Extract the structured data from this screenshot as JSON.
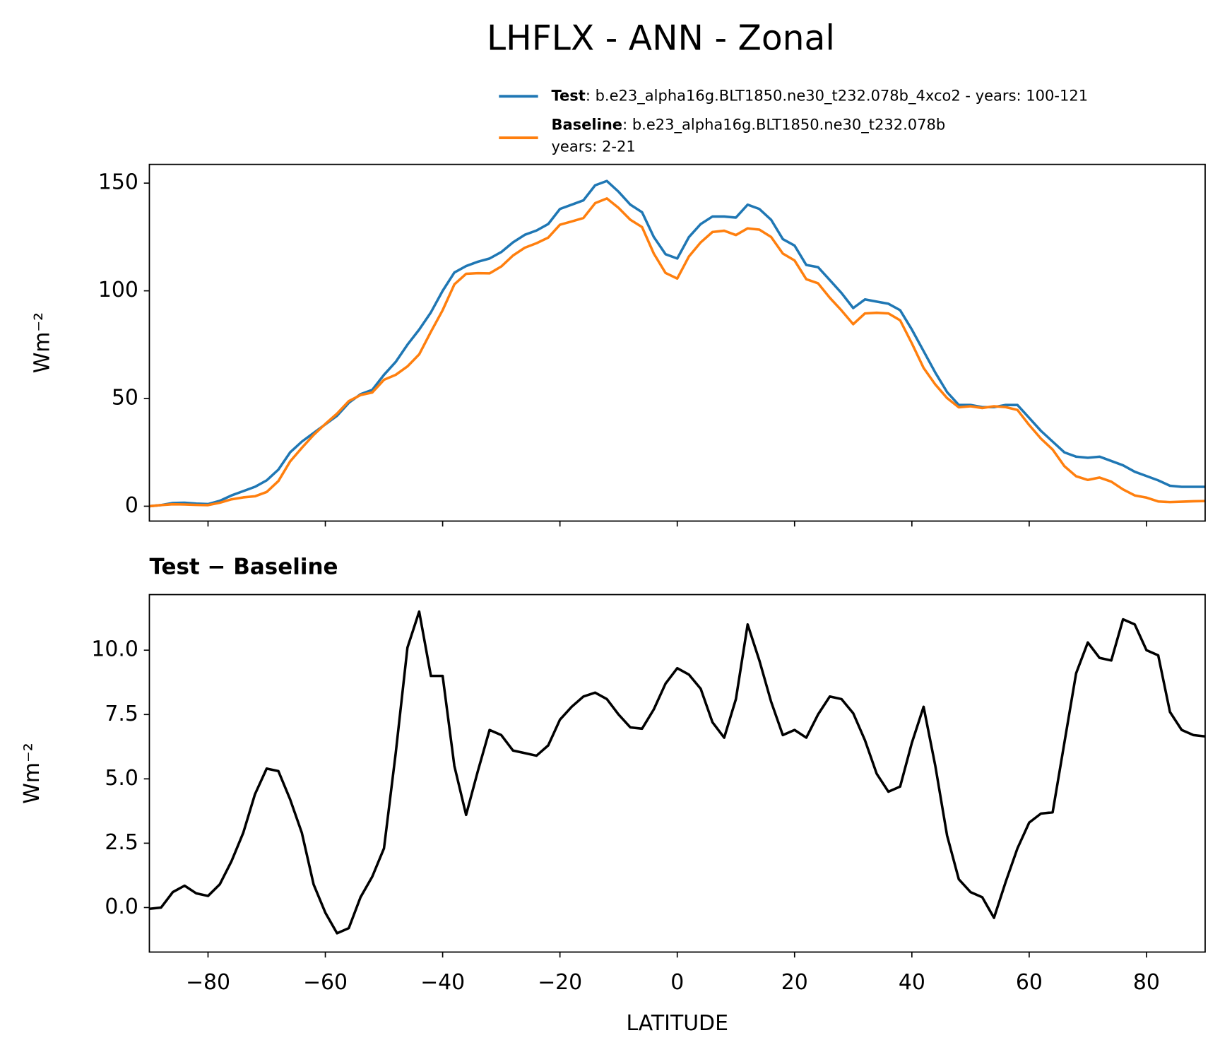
{
  "chart_data": [
    {
      "type": "line",
      "title": "LHFLX - ANN - Zonal",
      "ylabel": "Wm⁻²",
      "xlim": [
        -90,
        90
      ],
      "ylim": [
        -6.9,
        158.7
      ],
      "xticks": [
        -80,
        -60,
        -40,
        -20,
        0,
        20,
        40,
        60,
        80
      ],
      "yticks": [
        0,
        50,
        100,
        150
      ],
      "legend": "upper right",
      "x": [
        -90,
        -88,
        -86,
        -84,
        -82,
        -80,
        -78,
        -76,
        -74,
        -72,
        -70,
        -68,
        -66,
        -64,
        -62,
        -60,
        -58,
        -56,
        -54,
        -52,
        -50,
        -48,
        -46,
        -44,
        -42,
        -40,
        -38,
        -36,
        -34,
        -32,
        -30,
        -28,
        -26,
        -24,
        -22,
        -20,
        -18,
        -16,
        -14,
        -12,
        -10,
        -8,
        -6,
        -4,
        -2,
        0,
        2,
        4,
        6,
        8,
        10,
        12,
        14,
        16,
        18,
        20,
        22,
        24,
        26,
        28,
        30,
        32,
        34,
        36,
        38,
        40,
        42,
        44,
        46,
        48,
        50,
        52,
        54,
        56,
        58,
        60,
        62,
        64,
        66,
        68,
        70,
        72,
        74,
        76,
        78,
        80,
        82,
        84,
        86,
        88,
        90
      ],
      "series": [
        {
          "name": "Test",
          "description": [
            ": b.e23_alpha16g.BLT1850.ne30_t232.078b_4xco2 - years: 100-121"
          ],
          "color": "#1f77b4",
          "values": [
            0,
            0.5,
            1.5,
            1.6,
            1.2,
            1.0,
            2.5,
            5,
            7,
            9,
            12,
            17,
            25,
            30,
            34,
            38,
            42,
            48,
            52,
            54,
            61,
            67,
            75,
            82,
            90,
            100,
            108.5,
            111.5,
            113.5,
            115,
            118,
            122.5,
            126,
            128,
            131,
            138,
            140,
            142,
            149,
            151,
            146,
            140,
            136.5,
            125,
            117,
            115,
            125,
            131,
            134.5,
            134.5,
            134,
            140,
            138,
            133,
            124,
            121,
            112,
            111,
            105,
            99,
            92,
            96,
            95,
            94,
            91,
            82,
            72,
            62,
            53,
            47,
            47,
            46,
            46,
            47,
            47,
            41,
            35,
            30,
            25,
            23,
            22.5,
            23,
            21,
            19,
            16,
            14,
            12,
            9.5,
            9,
            9,
            9
          ]
        },
        {
          "name": "Baseline",
          "description": [
            ": b.e23_alpha16g.BLT1850.ne30_t232.078b",
            "years: 2-21"
          ],
          "color": "#ff7f0e",
          "values": [
            0,
            0.5,
            0.9,
            0.8,
            0.6,
            0.5,
            1.6,
            3.2,
            4.1,
            4.6,
            6.6,
            11.7,
            20.8,
            27.1,
            33.1,
            38.2,
            43,
            48.8,
            51.6,
            52.8,
            58.7,
            61,
            64.9,
            70.5,
            81,
            91,
            103,
            107.9,
            108.2,
            108.1,
            111.3,
            116.4,
            120,
            122.1,
            124.7,
            130.7,
            132.2,
            133.8,
            140.7,
            142.9,
            138.5,
            133,
            129.6,
            117.3,
            108.3,
            105.7,
            116,
            122.5,
            127.3,
            127.9,
            125.9,
            129,
            128.4,
            125,
            117.3,
            114.1,
            105.4,
            103.5,
            96.8,
            90.9,
            84.5,
            89.5,
            89.8,
            89.5,
            86.3,
            75.6,
            64.2,
            56.5,
            50.2,
            45.9,
            46.4,
            45.6,
            46.4,
            46,
            44.7,
            37.7,
            31.4,
            26.3,
            18.6,
            13.9,
            12.2,
            13.3,
            11.4,
            7.8,
            5,
            4,
            2.2,
            1.9,
            2.1,
            2.3,
            2.4
          ]
        }
      ]
    },
    {
      "type": "line",
      "title": "Test − Baseline",
      "xlabel": "LATITUDE",
      "ylabel": "Wm⁻²",
      "xlim": [
        -90,
        90
      ],
      "ylim": [
        -1.73,
        12.16
      ],
      "xticks": [
        {
          "value": -80,
          "label": "−80"
        },
        {
          "value": -60,
          "label": "−60"
        },
        {
          "value": -40,
          "label": "−40"
        },
        {
          "value": -20,
          "label": "−20"
        },
        0,
        20,
        40,
        60,
        80
      ],
      "yticks": [
        {
          "value": 0,
          "label": "0.0"
        },
        2.5,
        {
          "value": 5,
          "label": "5.0"
        },
        7.5,
        {
          "value": 10,
          "label": "10.0"
        }
      ],
      "x": [
        -90,
        -88,
        -86,
        -84,
        -82,
        -80,
        -78,
        -76,
        -74,
        -72,
        -70,
        -68,
        -66,
        -64,
        -62,
        -60,
        -58,
        -56,
        -54,
        -52,
        -50,
        -48,
        -46,
        -44,
        -42,
        -40,
        -38,
        -36,
        -34,
        -32,
        -30,
        -28,
        -26,
        -24,
        -22,
        -20,
        -18,
        -16,
        -14,
        -12,
        -10,
        -8,
        -6,
        -4,
        -2,
        0,
        2,
        4,
        6,
        8,
        10,
        12,
        14,
        16,
        18,
        20,
        22,
        24,
        26,
        28,
        30,
        32,
        34,
        36,
        38,
        40,
        42,
        44,
        46,
        48,
        50,
        52,
        54,
        56,
        58,
        60,
        62,
        64,
        66,
        68,
        70,
        72,
        74,
        76,
        78,
        80,
        82,
        84,
        86,
        88,
        90
      ],
      "series": [
        {
          "color": "#000000",
          "values": [
            -0.05,
            0,
            0.6,
            0.85,
            0.55,
            0.45,
            0.9,
            1.8,
            2.9,
            4.4,
            5.4,
            5.3,
            4.2,
            2.9,
            0.9,
            -0.2,
            -1.0,
            -0.8,
            0.4,
            1.2,
            2.3,
            6.0,
            10.1,
            11.5,
            9.0,
            9.0,
            5.5,
            3.6,
            5.3,
            6.9,
            6.7,
            6.1,
            6.0,
            5.9,
            6.3,
            7.3,
            7.8,
            8.2,
            8.35,
            8.1,
            7.5,
            7.0,
            6.95,
            7.7,
            8.7,
            9.3,
            9.05,
            8.5,
            7.2,
            6.6,
            8.1,
            11.0,
            9.6,
            8.0,
            6.7,
            6.9,
            6.6,
            7.5,
            8.2,
            8.1,
            7.55,
            6.5,
            5.2,
            4.5,
            4.7,
            6.4,
            7.8,
            5.5,
            2.8,
            1.1,
            0.6,
            0.4,
            -0.4,
            1.0,
            2.3,
            3.3,
            3.65,
            3.7,
            6.4,
            9.1,
            10.3,
            9.7,
            9.6,
            11.2,
            11.0,
            10.0,
            9.8,
            7.6,
            6.9,
            6.7,
            6.65
          ]
        }
      ]
    }
  ]
}
